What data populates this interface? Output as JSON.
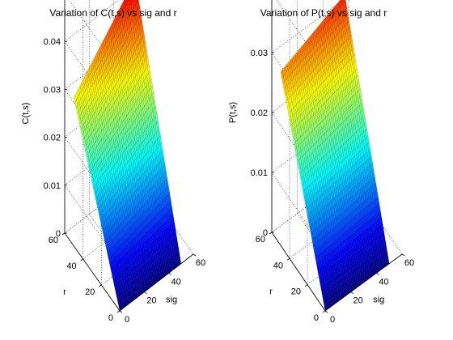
{
  "chart_data": [
    {
      "type": "surface",
      "title": "Variation of C(t,s) vs sig and r",
      "xlabel": "sig",
      "ylabel": "r",
      "zlabel": "C(t,s)",
      "xlim": [
        0,
        60
      ],
      "ylim": [
        0,
        60
      ],
      "zlim": [
        0,
        0.05
      ],
      "xticks": [
        "0",
        "20",
        "40",
        "60"
      ],
      "yticks": [
        "0",
        "20",
        "40",
        "60"
      ],
      "zticks": [
        "0",
        "0.01",
        "0.02",
        "0.03",
        "0.04",
        "0.05"
      ],
      "grid": true,
      "colormap": "jet",
      "surface": {
        "sig_range": [
          0,
          50
        ],
        "r_range": [
          0,
          50
        ],
        "corner_values": {
          "sig0_r0": 0.0,
          "sig50_r0": 0.0,
          "sig0_r50": 0.031,
          "sig50_r50": 0.046
        }
      }
    },
    {
      "type": "surface",
      "title": "Variation of P(t,s) vs sig and r",
      "xlabel": "sig",
      "ylabel": "r",
      "zlabel": "P(t,s)",
      "xlim": [
        0,
        60
      ],
      "ylim": [
        0,
        60
      ],
      "zlim": [
        0,
        0.04
      ],
      "xticks": [
        "0",
        "20",
        "40",
        "60"
      ],
      "yticks": [
        "0",
        "20",
        "40",
        "60"
      ],
      "zticks": [
        "0",
        "0.01",
        "0.02",
        "0.03",
        "0.04"
      ],
      "grid": true,
      "colormap": "jet",
      "surface": {
        "sig_range": [
          0,
          50
        ],
        "r_range": [
          0,
          50
        ],
        "corner_values": {
          "sig0_r0": 0.0,
          "sig50_r0": 0.0,
          "sig0_r50": 0.029,
          "sig50_r50": 0.034
        }
      }
    }
  ]
}
